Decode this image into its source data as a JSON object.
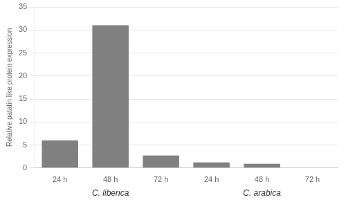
{
  "chart_data": {
    "type": "bar",
    "categories": [
      "24 h",
      "48 h",
      "72 h",
      "24 h",
      "48 h",
      "72 h"
    ],
    "values": [
      6.0,
      31.0,
      2.7,
      1.2,
      0.9,
      0.1
    ],
    "color": "#808080",
    "ylabel": "Relative patatin like protein expression",
    "annotations": [
      "C. liberica",
      "C. arabica"
    ],
    "ylim": [
      0,
      35
    ],
    "yticks": [
      0,
      5,
      10,
      15,
      20,
      25,
      30,
      35
    ],
    "grid": true
  }
}
